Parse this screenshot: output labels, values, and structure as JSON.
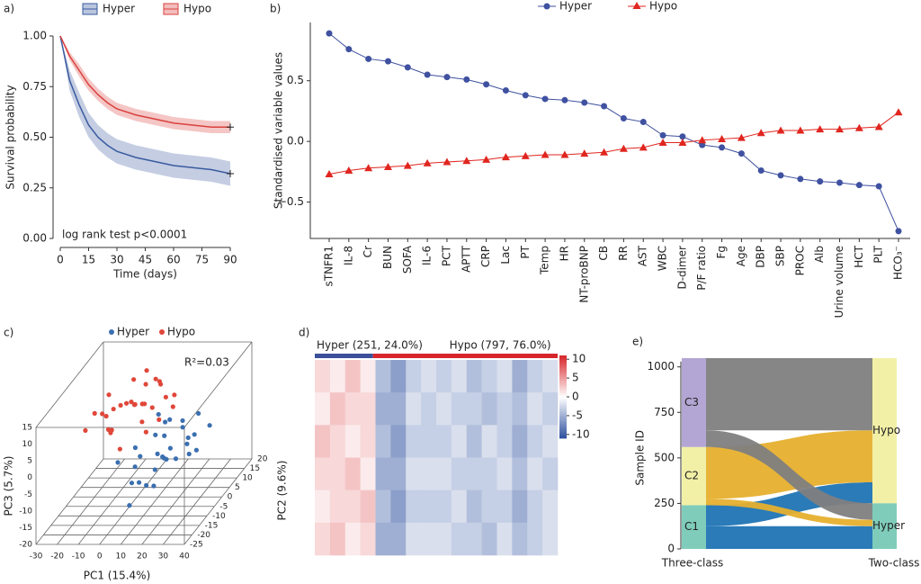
{
  "chart_data": [
    {
      "type": "line",
      "panel_label": "a)",
      "x_label": "Time (days)",
      "y_label": "Survival probability",
      "annotation": "log rank test p<0.0001",
      "x": [
        0,
        5,
        10,
        15,
        20,
        25,
        30,
        40,
        50,
        60,
        70,
        80,
        90
      ],
      "xlim": [
        0,
        90
      ],
      "xticks": [
        0,
        15,
        30,
        45,
        60,
        75,
        90
      ],
      "ylim": [
        0,
        1
      ],
      "yticks": [
        {
          "value": 0,
          "label": "0.00"
        },
        {
          "value": 0.25,
          "label": "0.25"
        },
        {
          "value": 0.5,
          "label": "0.50"
        },
        {
          "value": 0.75,
          "label": "0.75"
        },
        {
          "value": 1,
          "label": "1.00"
        }
      ],
      "series": [
        {
          "name": "Hyper",
          "color": "#3a5ba0",
          "values": [
            1.0,
            0.78,
            0.66,
            0.56,
            0.5,
            0.46,
            0.43,
            0.4,
            0.38,
            0.36,
            0.35,
            0.34,
            0.32
          ],
          "ci_lower": [
            1.0,
            0.73,
            0.6,
            0.5,
            0.44,
            0.4,
            0.37,
            0.34,
            0.32,
            0.3,
            0.29,
            0.28,
            0.26
          ],
          "ci_upper": [
            1.0,
            0.83,
            0.72,
            0.62,
            0.56,
            0.52,
            0.49,
            0.46,
            0.44,
            0.42,
            0.41,
            0.4,
            0.38
          ]
        },
        {
          "name": "Hypo",
          "color": "#d9413e",
          "values": [
            1.0,
            0.9,
            0.83,
            0.76,
            0.71,
            0.67,
            0.64,
            0.61,
            0.59,
            0.57,
            0.56,
            0.55,
            0.55
          ],
          "ci_lower": [
            1.0,
            0.88,
            0.8,
            0.73,
            0.68,
            0.64,
            0.61,
            0.58,
            0.56,
            0.54,
            0.53,
            0.52,
            0.52
          ],
          "ci_upper": [
            1.0,
            0.92,
            0.86,
            0.79,
            0.74,
            0.7,
            0.67,
            0.64,
            0.62,
            0.6,
            0.59,
            0.58,
            0.58
          ]
        }
      ]
    },
    {
      "type": "line",
      "panel_label": "b)",
      "y_label": "Standardised variable values",
      "categories": [
        "sTNFR1",
        "IL-8",
        "Cr",
        "BUN",
        "SOFA",
        "IL-6",
        "PCT",
        "APTT",
        "CRP",
        "Lac",
        "PT",
        "Temp",
        "HR",
        "NT-proBNP",
        "CB",
        "RR",
        "AST",
        "WBC",
        "D-dimer",
        "P/F ratio",
        "Fg",
        "Age",
        "DBP",
        "SBP",
        "PROC",
        "Alb",
        "Urine volume",
        "HCT",
        "PLT",
        "HCO₃⁻"
      ],
      "ylim": [
        -0.8,
        0.98
      ],
      "yticks": [
        {
          "value": -0.5,
          "label": "−0.5"
        },
        {
          "value": 0,
          "label": "0.0"
        },
        {
          "value": 0.5,
          "label": "0.5"
        }
      ],
      "series": [
        {
          "name": "Hyper",
          "color": "#3f51a0",
          "values": [
            0.89,
            0.76,
            0.68,
            0.66,
            0.61,
            0.55,
            0.53,
            0.51,
            0.47,
            0.42,
            0.38,
            0.35,
            0.34,
            0.32,
            0.29,
            0.19,
            0.16,
            0.05,
            0.04,
            -0.03,
            -0.05,
            -0.1,
            -0.24,
            -0.28,
            -0.31,
            -0.33,
            -0.34,
            -0.36,
            -0.37,
            -0.74
          ]
        },
        {
          "name": "Hypo",
          "color": "#e0261f",
          "values": [
            -0.27,
            -0.24,
            -0.22,
            -0.21,
            -0.2,
            -0.18,
            -0.17,
            -0.16,
            -0.15,
            -0.13,
            -0.12,
            -0.11,
            -0.11,
            -0.1,
            -0.09,
            -0.06,
            -0.05,
            -0.01,
            -0.01,
            0.01,
            0.02,
            0.03,
            0.07,
            0.09,
            0.09,
            0.1,
            0.1,
            0.11,
            0.12,
            0.24
          ]
        }
      ]
    },
    {
      "type": "scatter",
      "panel_label": "c)",
      "annotation": "R²=0.03",
      "x_label": "PC1 (15.4%)",
      "y_label": "PC3 (5.7%)",
      "z_label": "PC2 (9.6%)",
      "xlim": [
        -30,
        40
      ],
      "xticks": [
        -30,
        -20,
        -10,
        0,
        10,
        20,
        30,
        40
      ],
      "ylim": [
        -20,
        15
      ],
      "yticks": [
        -20,
        -15,
        -10,
        -5,
        0,
        5,
        10,
        15
      ],
      "zlim": [
        -25,
        20
      ],
      "zticks": [
        -25,
        -20,
        -15,
        -10,
        -5,
        0,
        5,
        10,
        15,
        20
      ],
      "series": [
        {
          "name": "Hyper",
          "color": "#3b6fb0",
          "x": [
            5,
            12,
            18,
            8,
            22,
            15,
            3,
            10,
            25,
            20,
            14,
            6,
            9,
            17,
            28,
            11,
            2,
            13,
            19,
            7,
            24,
            16,
            4,
            21,
            10,
            15,
            -2,
            30,
            12,
            8
          ],
          "values": [
            -5,
            -8,
            -2,
            -10,
            -4,
            0,
            -6,
            -12,
            -3,
            -7,
            2,
            -9,
            -1,
            -5,
            -6,
            -11,
            -3,
            -4,
            -8,
            -14,
            1,
            -2,
            -7,
            -10,
            -15,
            -6,
            -4,
            -2,
            -9,
            3
          ],
          "z": [
            -5,
            0,
            5,
            -10,
            3,
            -3,
            8,
            -8,
            -2,
            10,
            2,
            -12,
            6,
            -6,
            0,
            4,
            -4,
            12,
            -1,
            -15,
            7,
            -9,
            -7,
            5,
            -3,
            1,
            -10,
            6,
            -5,
            3
          ]
        },
        {
          "name": "Hypo",
          "color": "#e0473a",
          "x": [
            -5,
            0,
            -10,
            5,
            -15,
            2,
            -8,
            8,
            -3,
            -12,
            10,
            -6,
            3,
            -20,
            -1,
            6,
            -9,
            12,
            -4,
            -14,
            1,
            -7,
            4,
            -2,
            9,
            -11,
            7,
            -18,
            0,
            15
          ],
          "values": [
            8,
            5,
            3,
            10,
            6,
            12,
            2,
            7,
            14,
            4,
            9,
            1,
            11,
            5,
            0,
            13,
            8,
            3,
            6,
            10,
            15,
            4,
            -2,
            9,
            12,
            7,
            2,
            5,
            -4,
            11
          ],
          "z": [
            0,
            5,
            -5,
            8,
            -2,
            3,
            10,
            -8,
            2,
            6,
            -4,
            12,
            -6,
            0,
            -10,
            4,
            -3,
            7,
            -12,
            1,
            5,
            -7,
            9,
            -1,
            3,
            -5,
            15,
            -9,
            6,
            -2
          ]
        }
      ]
    },
    {
      "type": "heatmap",
      "panel_label": "d)",
      "groups": [
        {
          "label": "Hyper (251, 24.0%)",
          "count": 251,
          "color": "#3b4f9a"
        },
        {
          "label": "Hypo (797, 76.0%)",
          "count": 797,
          "color": "#d7262b"
        }
      ],
      "clim": [
        -11,
        11
      ],
      "cticks": [
        10,
        5,
        0,
        -5,
        -10
      ],
      "values": [
        [
          2,
          1,
          3,
          1,
          -4,
          -6,
          -3,
          -2,
          -3,
          -2,
          -4,
          -3,
          -2,
          -5,
          -3,
          -2
        ],
        [
          1,
          3,
          2,
          2,
          -5,
          -5,
          -2,
          -3,
          -2,
          -3,
          -3,
          -4,
          -3,
          -4,
          -2,
          -3
        ],
        [
          3,
          2,
          1,
          2,
          -4,
          -6,
          -3,
          -3,
          -3,
          -2,
          -4,
          -2,
          -3,
          -5,
          -3,
          -2
        ],
        [
          2,
          2,
          3,
          1,
          -5,
          -5,
          -2,
          -2,
          -2,
          -3,
          -3,
          -3,
          -2,
          -4,
          -2,
          -3
        ],
        [
          1,
          2,
          2,
          3,
          -4,
          -6,
          -3,
          -3,
          -3,
          -2,
          -4,
          -3,
          -3,
          -5,
          -3,
          -2
        ],
        [
          2,
          3,
          1,
          2,
          -5,
          -5,
          -2,
          -2,
          -2,
          -3,
          -3,
          -4,
          -2,
          -4,
          -3,
          -2
        ]
      ]
    },
    {
      "type": "sankey",
      "panel_label": "e)",
      "y_label": "Sample ID",
      "x_categories": [
        "Three-class",
        "Two-class"
      ],
      "ylim": [
        0,
        1048
      ],
      "yticks": [
        0,
        250,
        500,
        750,
        1000
      ],
      "sources": [
        {
          "name": "C1",
          "color": "#7fccba"
        },
        {
          "name": "C2",
          "color": "#f2f0a6"
        },
        {
          "name": "C3",
          "color": "#b3a6d4"
        }
      ],
      "targets": [
        {
          "name": "Hyper",
          "color": "#7fccba"
        },
        {
          "name": "Hypo",
          "color": "#f2f0a6"
        }
      ],
      "flows": [
        {
          "source": 0,
          "target": 0,
          "value": 125,
          "color": "#1f74b4"
        },
        {
          "source": 0,
          "target": 1,
          "value": 115,
          "color": "#1f74b4"
        },
        {
          "source": 1,
          "target": 0,
          "value": 35,
          "color": "#e6b02e"
        },
        {
          "source": 1,
          "target": 1,
          "value": 285,
          "color": "#e6b02e"
        },
        {
          "source": 2,
          "target": 0,
          "value": 91,
          "color": "#7f7f7f"
        },
        {
          "source": 2,
          "target": 1,
          "value": 397,
          "color": "#7f7f7f"
        }
      ]
    }
  ]
}
